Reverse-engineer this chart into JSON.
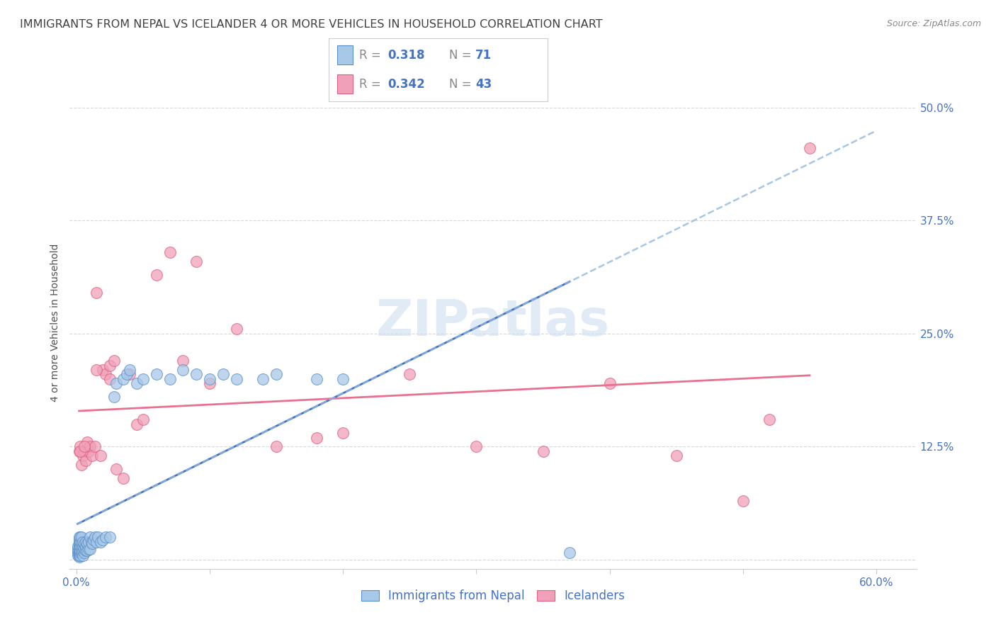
{
  "title": "IMMIGRANTS FROM NEPAL VS ICELANDER 4 OR MORE VEHICLES IN HOUSEHOLD CORRELATION CHART",
  "source": "Source: ZipAtlas.com",
  "ylabel": "4 or more Vehicles in Household",
  "yticks": [
    0.0,
    0.125,
    0.25,
    0.375,
    0.5
  ],
  "ytick_labels": [
    "",
    "12.5%",
    "25.0%",
    "37.5%",
    "50.0%"
  ],
  "xticks": [
    0.0,
    0.1,
    0.2,
    0.3,
    0.4,
    0.5,
    0.6
  ],
  "xlim": [
    -0.005,
    0.63
  ],
  "ylim": [
    -0.01,
    0.535
  ],
  "legend_r1": "0.318",
  "legend_n1": "71",
  "legend_r2": "0.342",
  "legend_n2": "43",
  "color_nepal": "#a8c8e8",
  "color_iceland": "#f0a0b8",
  "color_nepal_edge": "#5a8fc8",
  "color_iceland_edge": "#e06080",
  "color_nepal_line": "#4472c4",
  "color_iceland_line": "#e87090",
  "watermark_color": "#ccdff0",
  "background_color": "#ffffff",
  "grid_color": "#d8d8d8",
  "tick_color": "#4472c4",
  "title_color": "#404040",
  "title_fontsize": 11.5,
  "axis_label_fontsize": 10,
  "tick_fontsize": 11,
  "legend_fontsize": 12,
  "nepal_x": [
    0.001,
    0.001,
    0.001,
    0.001,
    0.001,
    0.002,
    0.002,
    0.002,
    0.002,
    0.002,
    0.002,
    0.002,
    0.002,
    0.002,
    0.002,
    0.003,
    0.003,
    0.003,
    0.003,
    0.003,
    0.003,
    0.004,
    0.004,
    0.004,
    0.004,
    0.004,
    0.005,
    0.005,
    0.005,
    0.005,
    0.006,
    0.006,
    0.006,
    0.007,
    0.007,
    0.007,
    0.008,
    0.008,
    0.009,
    0.009,
    0.01,
    0.01,
    0.011,
    0.012,
    0.013,
    0.014,
    0.015,
    0.016,
    0.018,
    0.02,
    0.022,
    0.025,
    0.028,
    0.03,
    0.035,
    0.038,
    0.04,
    0.045,
    0.05,
    0.06,
    0.07,
    0.08,
    0.09,
    0.1,
    0.11,
    0.12,
    0.14,
    0.15,
    0.18,
    0.2,
    0.37
  ],
  "nepal_y": [
    0.005,
    0.008,
    0.01,
    0.012,
    0.015,
    0.003,
    0.005,
    0.008,
    0.01,
    0.012,
    0.015,
    0.018,
    0.02,
    0.022,
    0.025,
    0.005,
    0.008,
    0.01,
    0.015,
    0.02,
    0.025,
    0.008,
    0.01,
    0.015,
    0.02,
    0.025,
    0.005,
    0.01,
    0.015,
    0.02,
    0.008,
    0.012,
    0.018,
    0.01,
    0.015,
    0.02,
    0.01,
    0.018,
    0.012,
    0.02,
    0.012,
    0.025,
    0.02,
    0.018,
    0.022,
    0.025,
    0.02,
    0.025,
    0.02,
    0.022,
    0.025,
    0.025,
    0.18,
    0.195,
    0.2,
    0.205,
    0.21,
    0.195,
    0.2,
    0.205,
    0.2,
    0.21,
    0.205,
    0.2,
    0.205,
    0.2,
    0.2,
    0.205,
    0.2,
    0.2,
    0.008
  ],
  "iceland_x": [
    0.002,
    0.003,
    0.004,
    0.005,
    0.006,
    0.007,
    0.008,
    0.009,
    0.01,
    0.012,
    0.014,
    0.015,
    0.018,
    0.02,
    0.022,
    0.025,
    0.028,
    0.03,
    0.035,
    0.04,
    0.045,
    0.05,
    0.06,
    0.07,
    0.08,
    0.09,
    0.1,
    0.12,
    0.15,
    0.18,
    0.2,
    0.25,
    0.3,
    0.35,
    0.4,
    0.45,
    0.5,
    0.52,
    0.55,
    0.003,
    0.006,
    0.015,
    0.025
  ],
  "iceland_y": [
    0.12,
    0.125,
    0.105,
    0.115,
    0.12,
    0.11,
    0.13,
    0.12,
    0.125,
    0.115,
    0.125,
    0.295,
    0.115,
    0.21,
    0.205,
    0.215,
    0.22,
    0.1,
    0.09,
    0.205,
    0.15,
    0.155,
    0.315,
    0.34,
    0.22,
    0.33,
    0.195,
    0.255,
    0.125,
    0.135,
    0.14,
    0.205,
    0.125,
    0.12,
    0.195,
    0.115,
    0.065,
    0.155,
    0.455,
    0.12,
    0.125,
    0.21,
    0.2
  ]
}
